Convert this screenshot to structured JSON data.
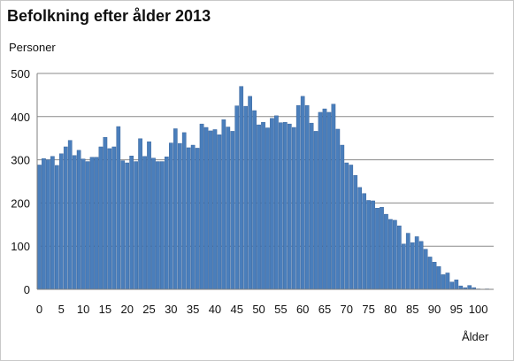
{
  "chart_data": {
    "type": "bar",
    "title": "Befolkning efter ålder 2013",
    "ylabel": "Personer",
    "xlabel": "Ålder",
    "ylim": [
      0,
      500
    ],
    "yticks": [
      0,
      100,
      200,
      300,
      400,
      500
    ],
    "xticks": [
      0,
      5,
      10,
      15,
      20,
      25,
      30,
      35,
      40,
      45,
      50,
      55,
      60,
      65,
      70,
      75,
      80,
      85,
      90,
      95,
      100
    ],
    "grid": "horizontal",
    "legend": "none",
    "bar_color": "#4a7ebb",
    "bar_edge_color": "#2f5b94",
    "categories": [
      0,
      1,
      2,
      3,
      4,
      5,
      6,
      7,
      8,
      9,
      10,
      11,
      12,
      13,
      14,
      15,
      16,
      17,
      18,
      19,
      20,
      21,
      22,
      23,
      24,
      25,
      26,
      27,
      28,
      29,
      30,
      31,
      32,
      33,
      34,
      35,
      36,
      37,
      38,
      39,
      40,
      41,
      42,
      43,
      44,
      45,
      46,
      47,
      48,
      49,
      50,
      51,
      52,
      53,
      54,
      55,
      56,
      57,
      58,
      59,
      60,
      61,
      62,
      63,
      64,
      65,
      66,
      67,
      68,
      69,
      70,
      71,
      72,
      73,
      74,
      75,
      76,
      77,
      78,
      79,
      80,
      81,
      82,
      83,
      84,
      85,
      86,
      87,
      88,
      89,
      90,
      91,
      92,
      93,
      94,
      95,
      96,
      97,
      98,
      99,
      100,
      101,
      102,
      103
    ],
    "values": [
      288,
      303,
      300,
      308,
      287,
      314,
      330,
      345,
      310,
      322,
      302,
      296,
      306,
      306,
      330,
      352,
      326,
      330,
      377,
      298,
      293,
      309,
      296,
      349,
      308,
      342,
      304,
      296,
      296,
      307,
      339,
      372,
      338,
      363,
      328,
      334,
      327,
      383,
      375,
      367,
      370,
      358,
      393,
      376,
      366,
      425,
      470,
      424,
      447,
      414,
      381,
      387,
      374,
      396,
      402,
      386,
      387,
      383,
      375,
      426,
      447,
      426,
      385,
      366,
      410,
      418,
      410,
      429,
      371,
      334,
      293,
      288,
      264,
      236,
      222,
      206,
      205,
      188,
      190,
      174,
      162,
      160,
      147,
      105,
      130,
      108,
      122,
      111,
      93,
      75,
      63,
      53,
      34,
      38,
      17,
      22,
      8,
      4,
      9,
      4,
      1,
      0,
      1,
      0
    ]
  }
}
